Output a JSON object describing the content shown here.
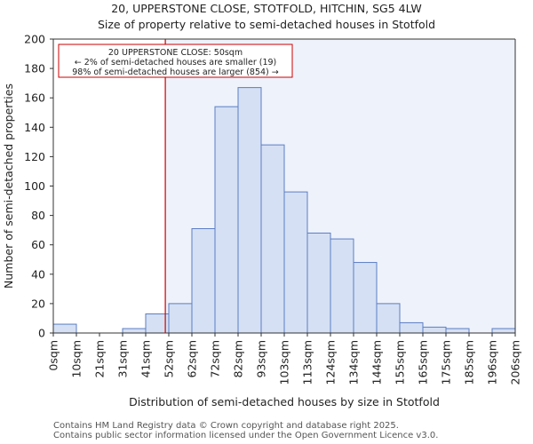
{
  "chart_data": {
    "type": "histogram",
    "title_line1": "20, UPPERSTONE CLOSE, STOTFOLD, HITCHIN, SG5 4LW",
    "title_line2": "Size of property relative to semi-detached houses in Stotfold",
    "xlabel": "Distribution of semi-detached houses by size in Stotfold",
    "ylabel": "Number of semi-detached properties",
    "ylim": [
      0,
      200
    ],
    "yticks": [
      0,
      20,
      40,
      60,
      80,
      100,
      120,
      140,
      160,
      180,
      200
    ],
    "categories": [
      "0sqm",
      "10sqm",
      "21sqm",
      "31sqm",
      "41sqm",
      "52sqm",
      "62sqm",
      "72sqm",
      "82sqm",
      "93sqm",
      "103sqm",
      "113sqm",
      "124sqm",
      "134sqm",
      "144sqm",
      "155sqm",
      "165sqm",
      "175sqm",
      "185sqm",
      "196sqm",
      "206sqm"
    ],
    "values": [
      6,
      0,
      0,
      3,
      13,
      20,
      71,
      154,
      167,
      128,
      96,
      68,
      64,
      48,
      20,
      7,
      4,
      3,
      0,
      3
    ],
    "marker": {
      "value_sqm": 50,
      "bin_position": 4.85,
      "line1": "20 UPPERSTONE CLOSE: 50sqm",
      "line2": "← 2% of semi-detached houses are smaller (19)",
      "line3": "98% of semi-detached houses are larger (854) →"
    },
    "colors": {
      "bar_fill": "#d5e0f4",
      "bar_stroke": "#5b7ec4",
      "highlight_bg": "#eef2fb",
      "marker": "#cc0000"
    }
  },
  "footer": {
    "line1": "Contains HM Land Registry data © Crown copyright and database right 2025.",
    "line2": "Contains public sector information licensed under the Open Government Licence v3.0."
  }
}
